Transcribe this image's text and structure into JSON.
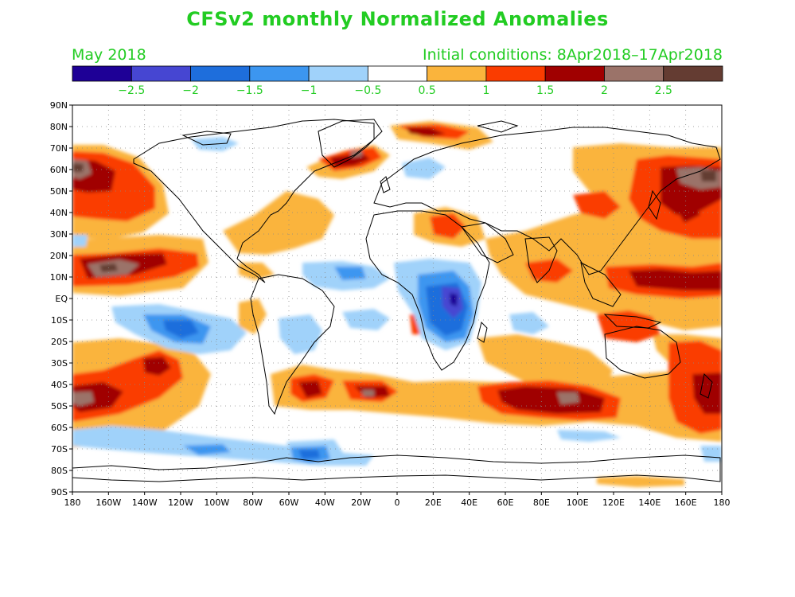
{
  "title": "CFSv2 monthly Normalized Anomalies",
  "valid_month": "May 2018",
  "initial_conditions": "Initial conditions: 8Apr2018–17Apr2018",
  "colorbar": {
    "colors": [
      "#1e0096",
      "#4646d2",
      "#1e6edc",
      "#3c96f0",
      "#a0d2fa",
      "#ffffff",
      "#fab43c",
      "#fa3c00",
      "#a00000",
      "#9b7369",
      "#643c32"
    ],
    "labels": [
      "−2.5",
      "−2",
      "−1.5",
      "−1",
      "−0.5",
      "0.5",
      "1",
      "1.5",
      "2",
      "2.5"
    ]
  },
  "axes": {
    "lat_labels": [
      "90N",
      "80N",
      "70N",
      "60N",
      "50N",
      "40N",
      "30N",
      "20N",
      "10N",
      "EQ",
      "10S",
      "20S",
      "30S",
      "40S",
      "50S",
      "60S",
      "70S",
      "80S",
      "90S"
    ],
    "lon_labels": [
      "180",
      "160W",
      "140W",
      "120W",
      "100W",
      "80W",
      "60W",
      "40W",
      "20W",
      "0",
      "20E",
      "40E",
      "60E",
      "80E",
      "100E",
      "120E",
      "140E",
      "160E",
      "180"
    ],
    "lat_range": [
      -90,
      90
    ],
    "lon_range": [
      -180,
      180
    ],
    "grid": "dotted"
  },
  "colors": {
    "text": "#22cc22",
    "frame": "#000000"
  }
}
